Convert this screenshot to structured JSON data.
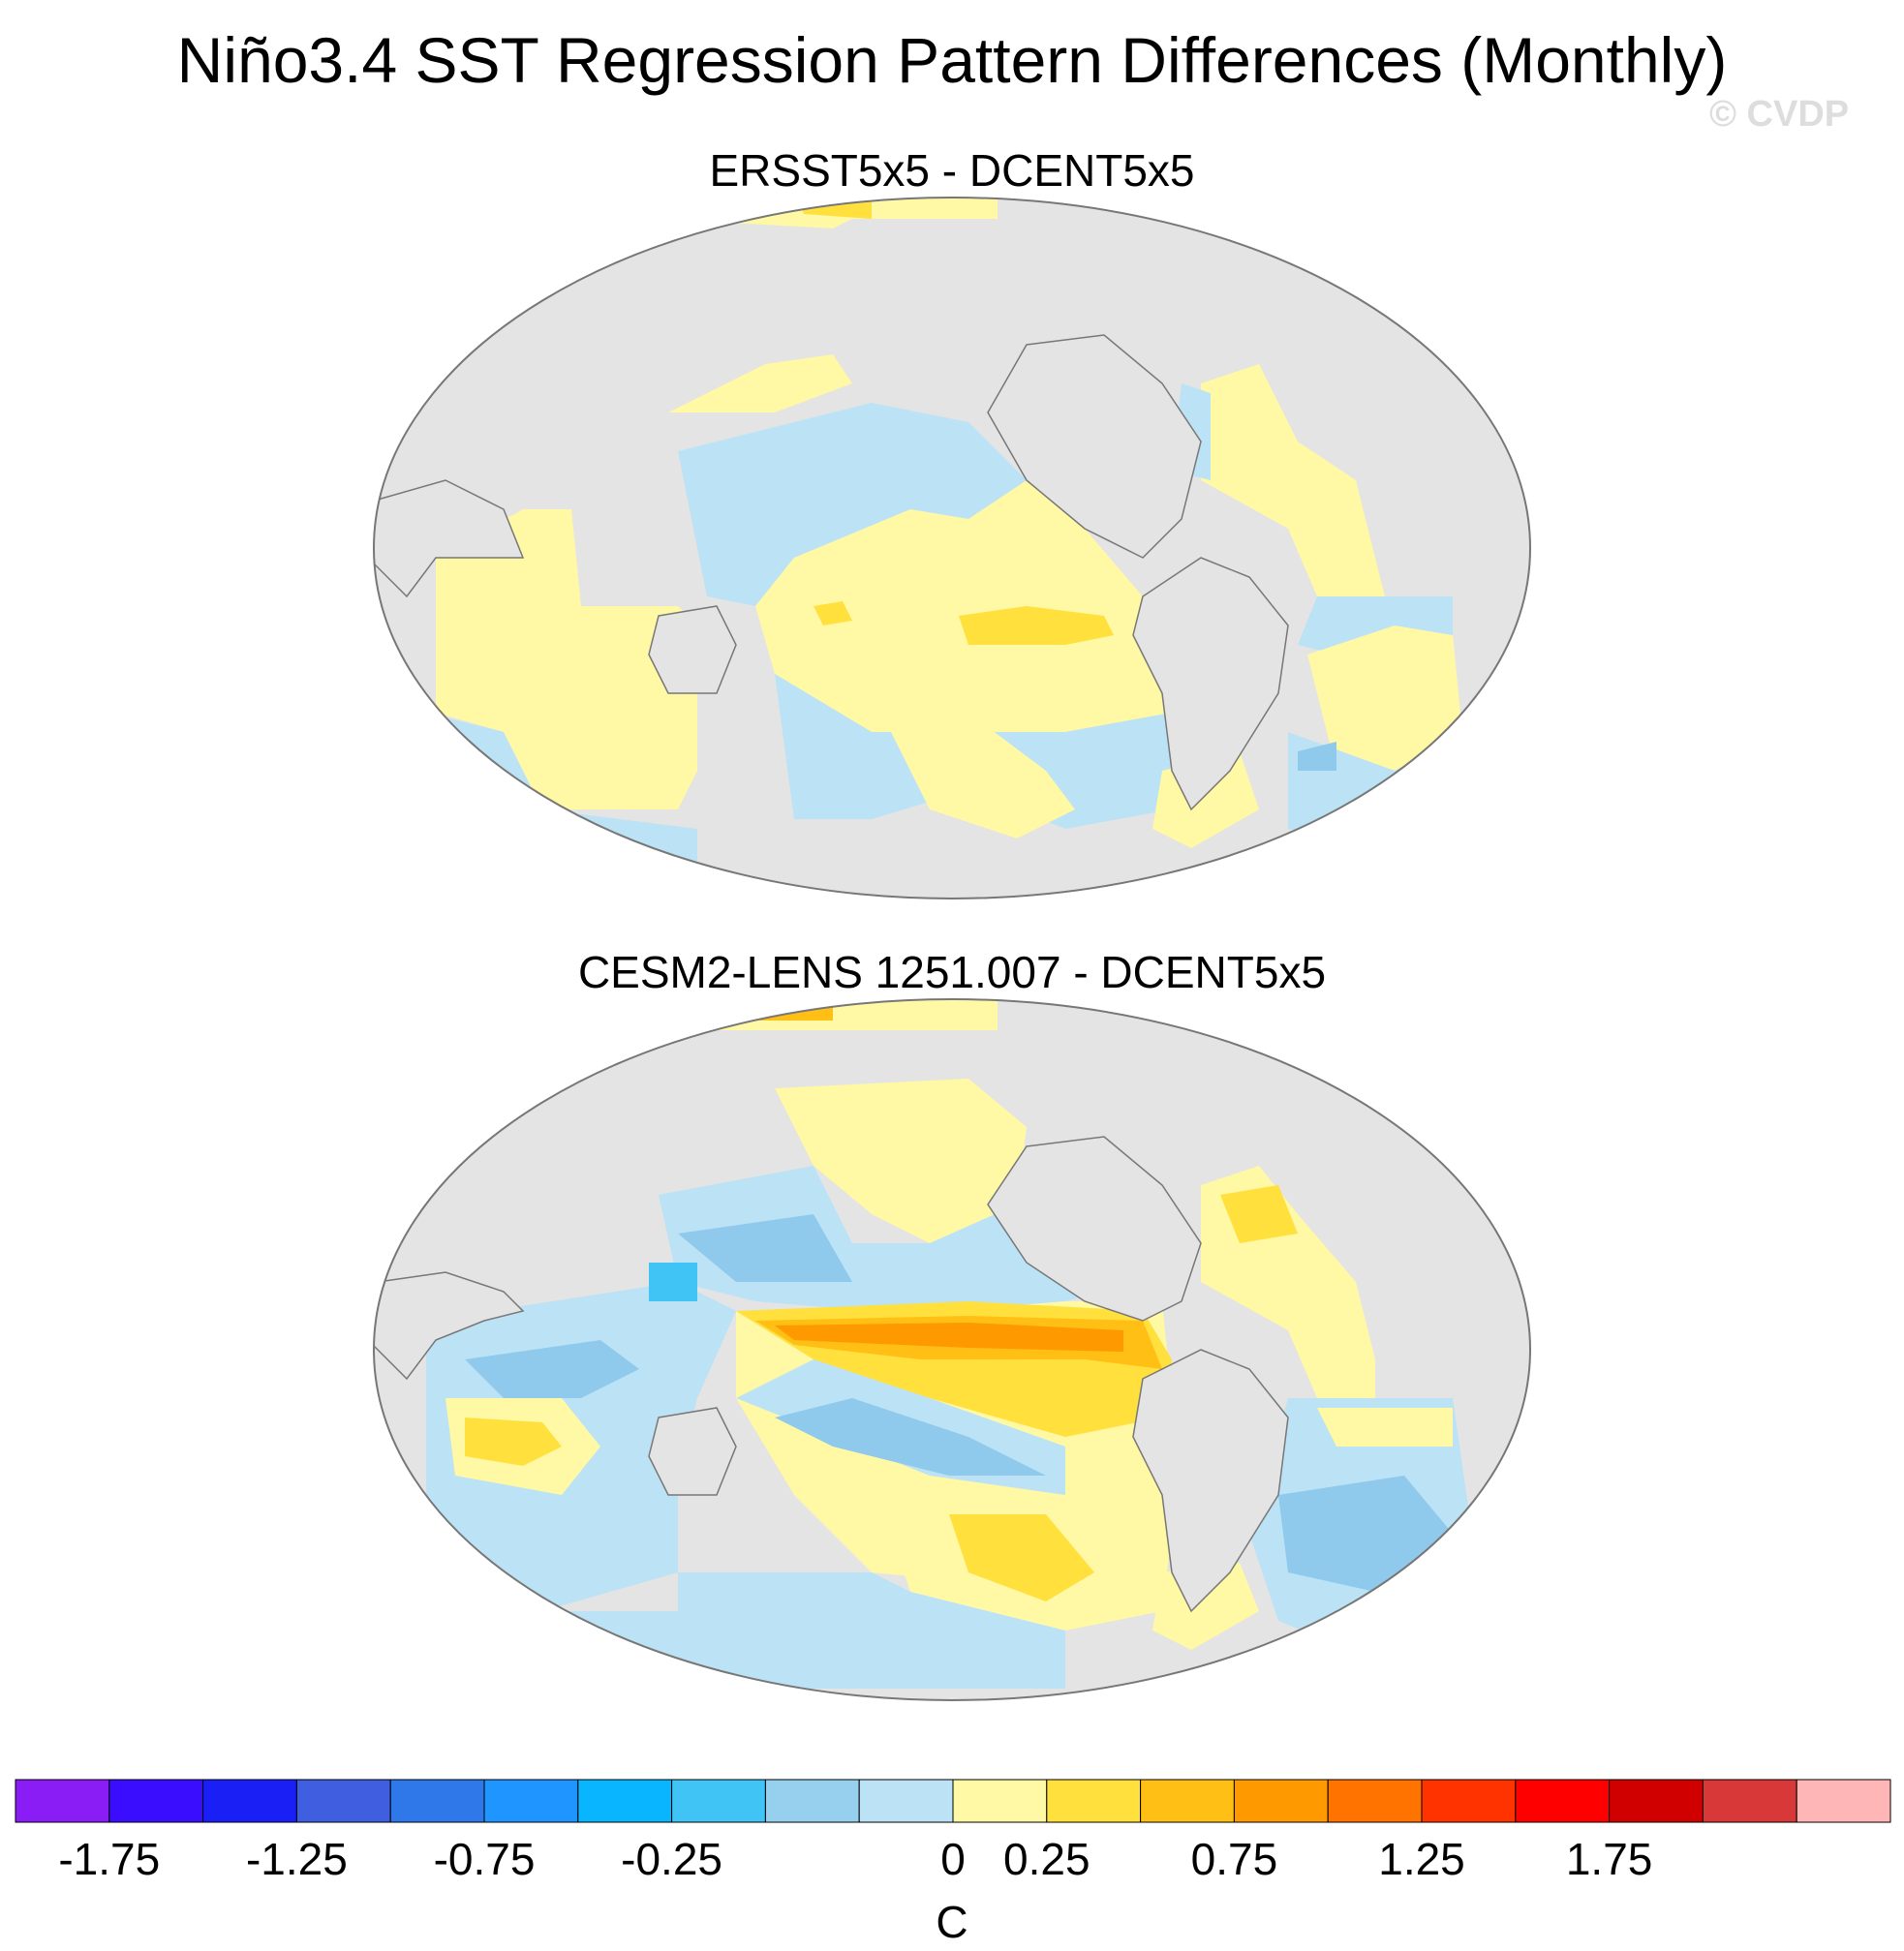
{
  "figure": {
    "title": "Niño3.4 SST Regression Pattern Differences (Monthly)",
    "watermark": "© CVDP"
  },
  "panels": [
    {
      "id": "top",
      "title": "ERSST5x5 - DCENT5x5"
    },
    {
      "id": "bottom",
      "title": "CESM2-LENS 1251.007 - DCENT5x5"
    }
  ],
  "colorbar": {
    "unit": "C",
    "colors": [
      "#8a1cf5",
      "#3a0dff",
      "#1a1ff5",
      "#3f5ee0",
      "#2f78ea",
      "#1f95ff",
      "#0ab5ff",
      "#40c4f5",
      "#96d0ee",
      "#bce2f5",
      "#fff8a5",
      "#ffe03d",
      "#ffbf14",
      "#ff9900",
      "#ff7300",
      "#ff3300",
      "#ff0000",
      "#d10000",
      "#d93838",
      "#ffb6b6"
    ],
    "tick_labels": [
      "-1.75",
      "-1.25",
      "-0.75",
      "-0.25",
      "0",
      "0.25",
      "0.75",
      "1.25",
      "1.75"
    ],
    "tick_boundary_index": [
      1,
      3,
      5,
      7,
      10,
      11,
      13,
      15,
      17
    ]
  },
  "map_colors": {
    "land": "#e4e4e4",
    "missing": "#dcdcdc",
    "coast": "#777777"
  }
}
